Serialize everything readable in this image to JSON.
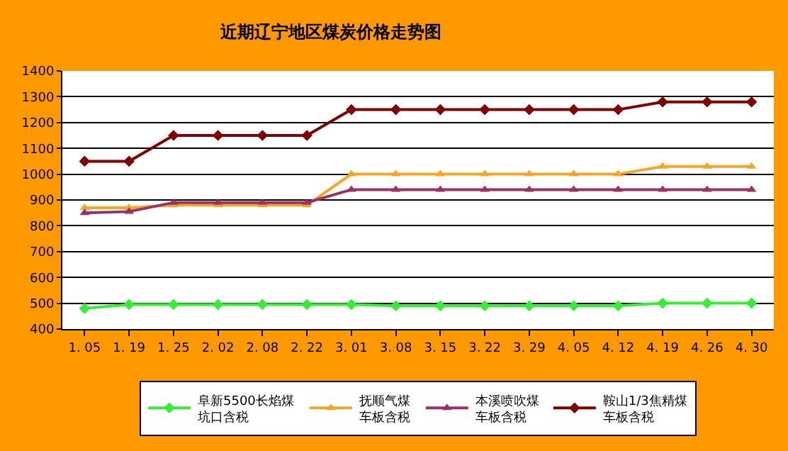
{
  "chart_data": {
    "type": "line",
    "title": "近期辽宁地区煤炭价格走势图",
    "categories": [
      "1. 05",
      "1. 19",
      "1. 25",
      "2. 02",
      "2. 08",
      "2. 22",
      "3. 01",
      "3. 08",
      "3. 15",
      "3. 22",
      "3. 29",
      "4. 05",
      "4. 12",
      "4. 19",
      "4. 26",
      "4. 30"
    ],
    "series": [
      {
        "name": "阜新5500长焰煤坑口含税",
        "color": "#33ee33",
        "marker": "diamond",
        "values": [
          480,
          495,
          495,
          495,
          495,
          495,
          495,
          490,
          490,
          490,
          490,
          490,
          490,
          500,
          500,
          500
        ]
      },
      {
        "name": "抚顺气煤车板含税",
        "color": "#f5a623",
        "marker": "triangle",
        "values": [
          870,
          870,
          880,
          880,
          880,
          880,
          1000,
          1000,
          1000,
          1000,
          1000,
          1000,
          1000,
          1030,
          1030,
          1030
        ]
      },
      {
        "name": "本溪喷吹煤车板含税",
        "color": "#993366",
        "marker": "triangle",
        "values": [
          850,
          855,
          890,
          890,
          890,
          890,
          940,
          940,
          940,
          940,
          940,
          940,
          940,
          940,
          940,
          940
        ]
      },
      {
        "name": "鞍山1/3焦精煤车板含税",
        "color": "#800000",
        "marker": "diamond",
        "values": [
          1050,
          1050,
          1150,
          1150,
          1150,
          1150,
          1250,
          1250,
          1250,
          1250,
          1250,
          1250,
          1250,
          1280,
          1280,
          1280
        ]
      }
    ],
    "ylim": [
      400,
      1400
    ],
    "yticks": [
      400,
      500,
      600,
      700,
      800,
      900,
      1000,
      1100,
      1200,
      1300,
      1400
    ],
    "grid": "y",
    "legend": "bottom",
    "line_style": "solid"
  }
}
